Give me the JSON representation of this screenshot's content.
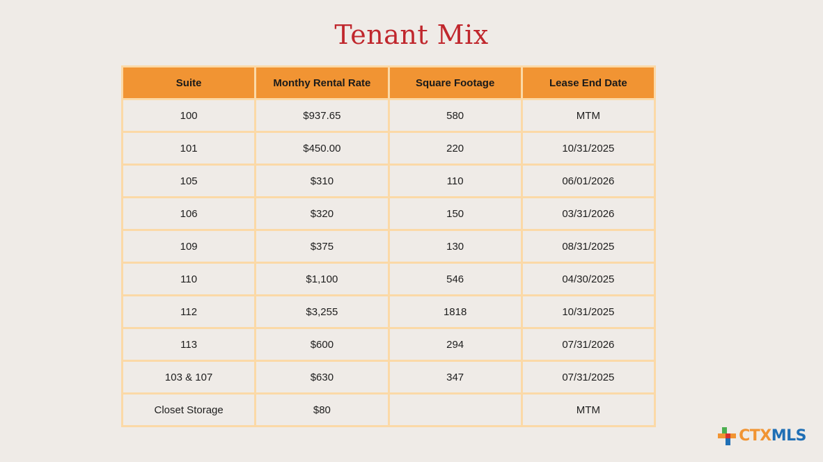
{
  "title": "Tenant Mix",
  "table": {
    "headers": [
      "Suite",
      "Monthy Rental Rate",
      "Square Footage",
      "Lease End Date"
    ],
    "rows": [
      [
        "100",
        "$937.65",
        "580",
        "MTM"
      ],
      [
        "101",
        "$450.00",
        "220",
        "10/31/2025"
      ],
      [
        "105",
        "$310",
        "110",
        "06/01/2026"
      ],
      [
        "106",
        "$320",
        "150",
        "03/31/2026"
      ],
      [
        "109",
        "$375",
        "130",
        "08/31/2025"
      ],
      [
        "110",
        "$1,100",
        "546",
        "04/30/2025"
      ],
      [
        "112",
        "$3,255",
        "1818",
        "10/31/2025"
      ],
      [
        "113",
        "$600",
        "294",
        "07/31/2026"
      ],
      [
        "103 & 107",
        "$630",
        "347",
        "07/31/2025"
      ],
      [
        "Closet Storage",
        "$80",
        "",
        "MTM"
      ]
    ]
  },
  "logo": {
    "prefix": "CTX",
    "suffix": "MLS",
    "icon": "texas-map-logo-icon",
    "colors": {
      "orange": "#f19433",
      "blue": "#1f6fb5",
      "green": "#4caf50",
      "red": "#d32f2f"
    }
  },
  "colors": {
    "background": "#efebe7",
    "title": "#c0272d",
    "header_fill": "#f19433",
    "grid_border": "#fbd9a7"
  }
}
